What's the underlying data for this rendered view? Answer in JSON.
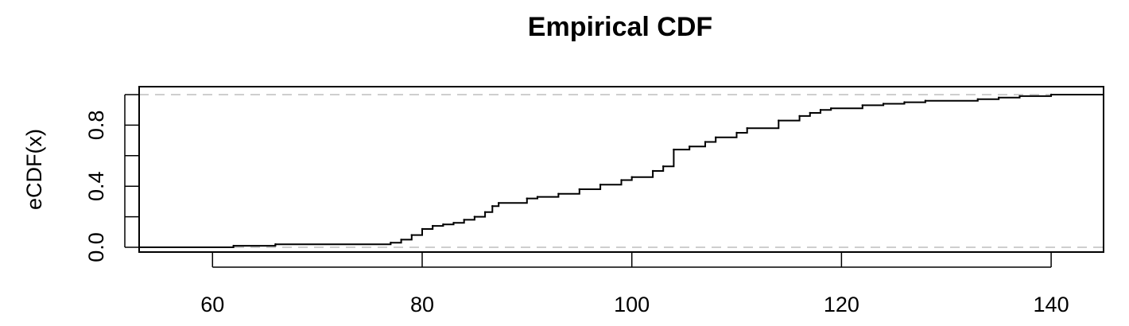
{
  "chart_data": {
    "type": "line",
    "step": true,
    "title": "Empirical CDF",
    "xlabel": "",
    "ylabel": "eCDF(x)",
    "xlim": [
      53,
      145
    ],
    "ylim": [
      0,
      1
    ],
    "x_ticks": [
      60,
      80,
      100,
      120,
      140
    ],
    "x_tick_labels": [
      "60",
      "80",
      "100",
      "120",
      "140"
    ],
    "y_ticks": [
      0,
      0.2,
      0.4,
      0.6,
      0.8,
      1.0
    ],
    "y_tick_labels": [
      "0.0",
      "",
      "0.4",
      "",
      "0.8",
      ""
    ],
    "reference_lines": [
      0,
      1
    ],
    "colors": {
      "line": "#000000",
      "reference": "#bdbdbd",
      "frame": "#000000"
    },
    "series": [
      {
        "points": [
          [
            53,
            0.0
          ],
          [
            62,
            0.01
          ],
          [
            66,
            0.02
          ],
          [
            77,
            0.03
          ],
          [
            78,
            0.05
          ],
          [
            79,
            0.08
          ],
          [
            80,
            0.12
          ],
          [
            81,
            0.14
          ],
          [
            82,
            0.15
          ],
          [
            83,
            0.16
          ],
          [
            84,
            0.18
          ],
          [
            85,
            0.2
          ],
          [
            86,
            0.23
          ],
          [
            86.7,
            0.27
          ],
          [
            87.3,
            0.29
          ],
          [
            90,
            0.32
          ],
          [
            91,
            0.33
          ],
          [
            93,
            0.35
          ],
          [
            95,
            0.38
          ],
          [
            97,
            0.41
          ],
          [
            99,
            0.44
          ],
          [
            100,
            0.46
          ],
          [
            102,
            0.5
          ],
          [
            103,
            0.53
          ],
          [
            104,
            0.64
          ],
          [
            105.5,
            0.66
          ],
          [
            107,
            0.69
          ],
          [
            108,
            0.72
          ],
          [
            110,
            0.75
          ],
          [
            111,
            0.78
          ],
          [
            114,
            0.83
          ],
          [
            116,
            0.86
          ],
          [
            117,
            0.88
          ],
          [
            118,
            0.9
          ],
          [
            119,
            0.91
          ],
          [
            122,
            0.93
          ],
          [
            124,
            0.94
          ],
          [
            126,
            0.95
          ],
          [
            128,
            0.96
          ],
          [
            133,
            0.97
          ],
          [
            135,
            0.98
          ],
          [
            137,
            0.99
          ],
          [
            140,
            1.0
          ],
          [
            145,
            1.0
          ]
        ]
      }
    ]
  }
}
